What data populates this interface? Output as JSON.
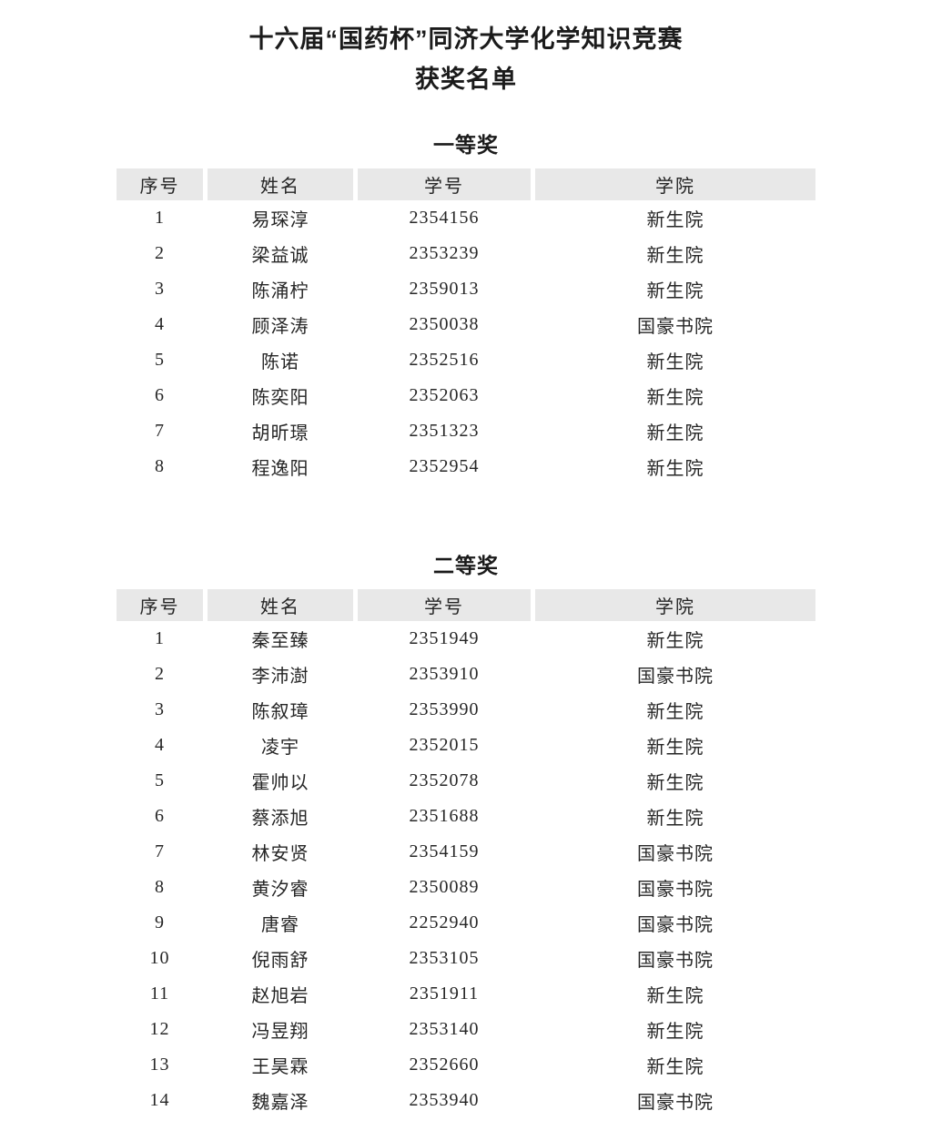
{
  "page": {
    "title_line1": "十六届“国药杯”同济大学化学知识竞赛",
    "title_line2": "获奖名单"
  },
  "table_headers": [
    "序号",
    "姓名",
    "学号",
    "学院"
  ],
  "sections": [
    {
      "heading": "一等奖",
      "rows": [
        {
          "no": "1",
          "name": "易琛淳",
          "student_id": "2354156",
          "college": "新生院"
        },
        {
          "no": "2",
          "name": "梁益诚",
          "student_id": "2353239",
          "college": "新生院"
        },
        {
          "no": "3",
          "name": "陈涌柠",
          "student_id": "2359013",
          "college": "新生院"
        },
        {
          "no": "4",
          "name": "顾泽涛",
          "student_id": "2350038",
          "college": "国豪书院"
        },
        {
          "no": "5",
          "name": "陈诺",
          "student_id": "2352516",
          "college": "新生院"
        },
        {
          "no": "6",
          "name": "陈奕阳",
          "student_id": "2352063",
          "college": "新生院"
        },
        {
          "no": "7",
          "name": "胡昕璟",
          "student_id": "2351323",
          "college": "新生院"
        },
        {
          "no": "8",
          "name": "程逸阳",
          "student_id": "2352954",
          "college": "新生院"
        }
      ]
    },
    {
      "heading": "二等奖",
      "rows": [
        {
          "no": "1",
          "name": "秦至臻",
          "student_id": "2351949",
          "college": "新生院"
        },
        {
          "no": "2",
          "name": "李沛澍",
          "student_id": "2353910",
          "college": "国豪书院"
        },
        {
          "no": "3",
          "name": "陈叙璋",
          "student_id": "2353990",
          "college": "新生院"
        },
        {
          "no": "4",
          "name": "凌宇",
          "student_id": "2352015",
          "college": "新生院"
        },
        {
          "no": "5",
          "name": "霍帅以",
          "student_id": "2352078",
          "college": "新生院"
        },
        {
          "no": "6",
          "name": "蔡添旭",
          "student_id": "2351688",
          "college": "新生院"
        },
        {
          "no": "7",
          "name": "林安贤",
          "student_id": "2354159",
          "college": "国豪书院"
        },
        {
          "no": "8",
          "name": "黄汐睿",
          "student_id": "2350089",
          "college": "国豪书院"
        },
        {
          "no": "9",
          "name": "唐睿",
          "student_id": "2252940",
          "college": "国豪书院"
        },
        {
          "no": "10",
          "name": "倪雨舒",
          "student_id": "2353105",
          "college": "国豪书院"
        },
        {
          "no": "11",
          "name": "赵旭岩",
          "student_id": "2351911",
          "college": "新生院"
        },
        {
          "no": "12",
          "name": "冯昱翔",
          "student_id": "2353140",
          "college": "新生院"
        },
        {
          "no": "13",
          "name": "王昊霖",
          "student_id": "2352660",
          "college": "新生院"
        },
        {
          "no": "14",
          "name": "魏嘉泽",
          "student_id": "2353940",
          "college": "国豪书院"
        }
      ]
    }
  ],
  "colors": {
    "page_bg": "#ffffff",
    "header_cell_bg": "#e8e8e8",
    "text": "#262626"
  }
}
